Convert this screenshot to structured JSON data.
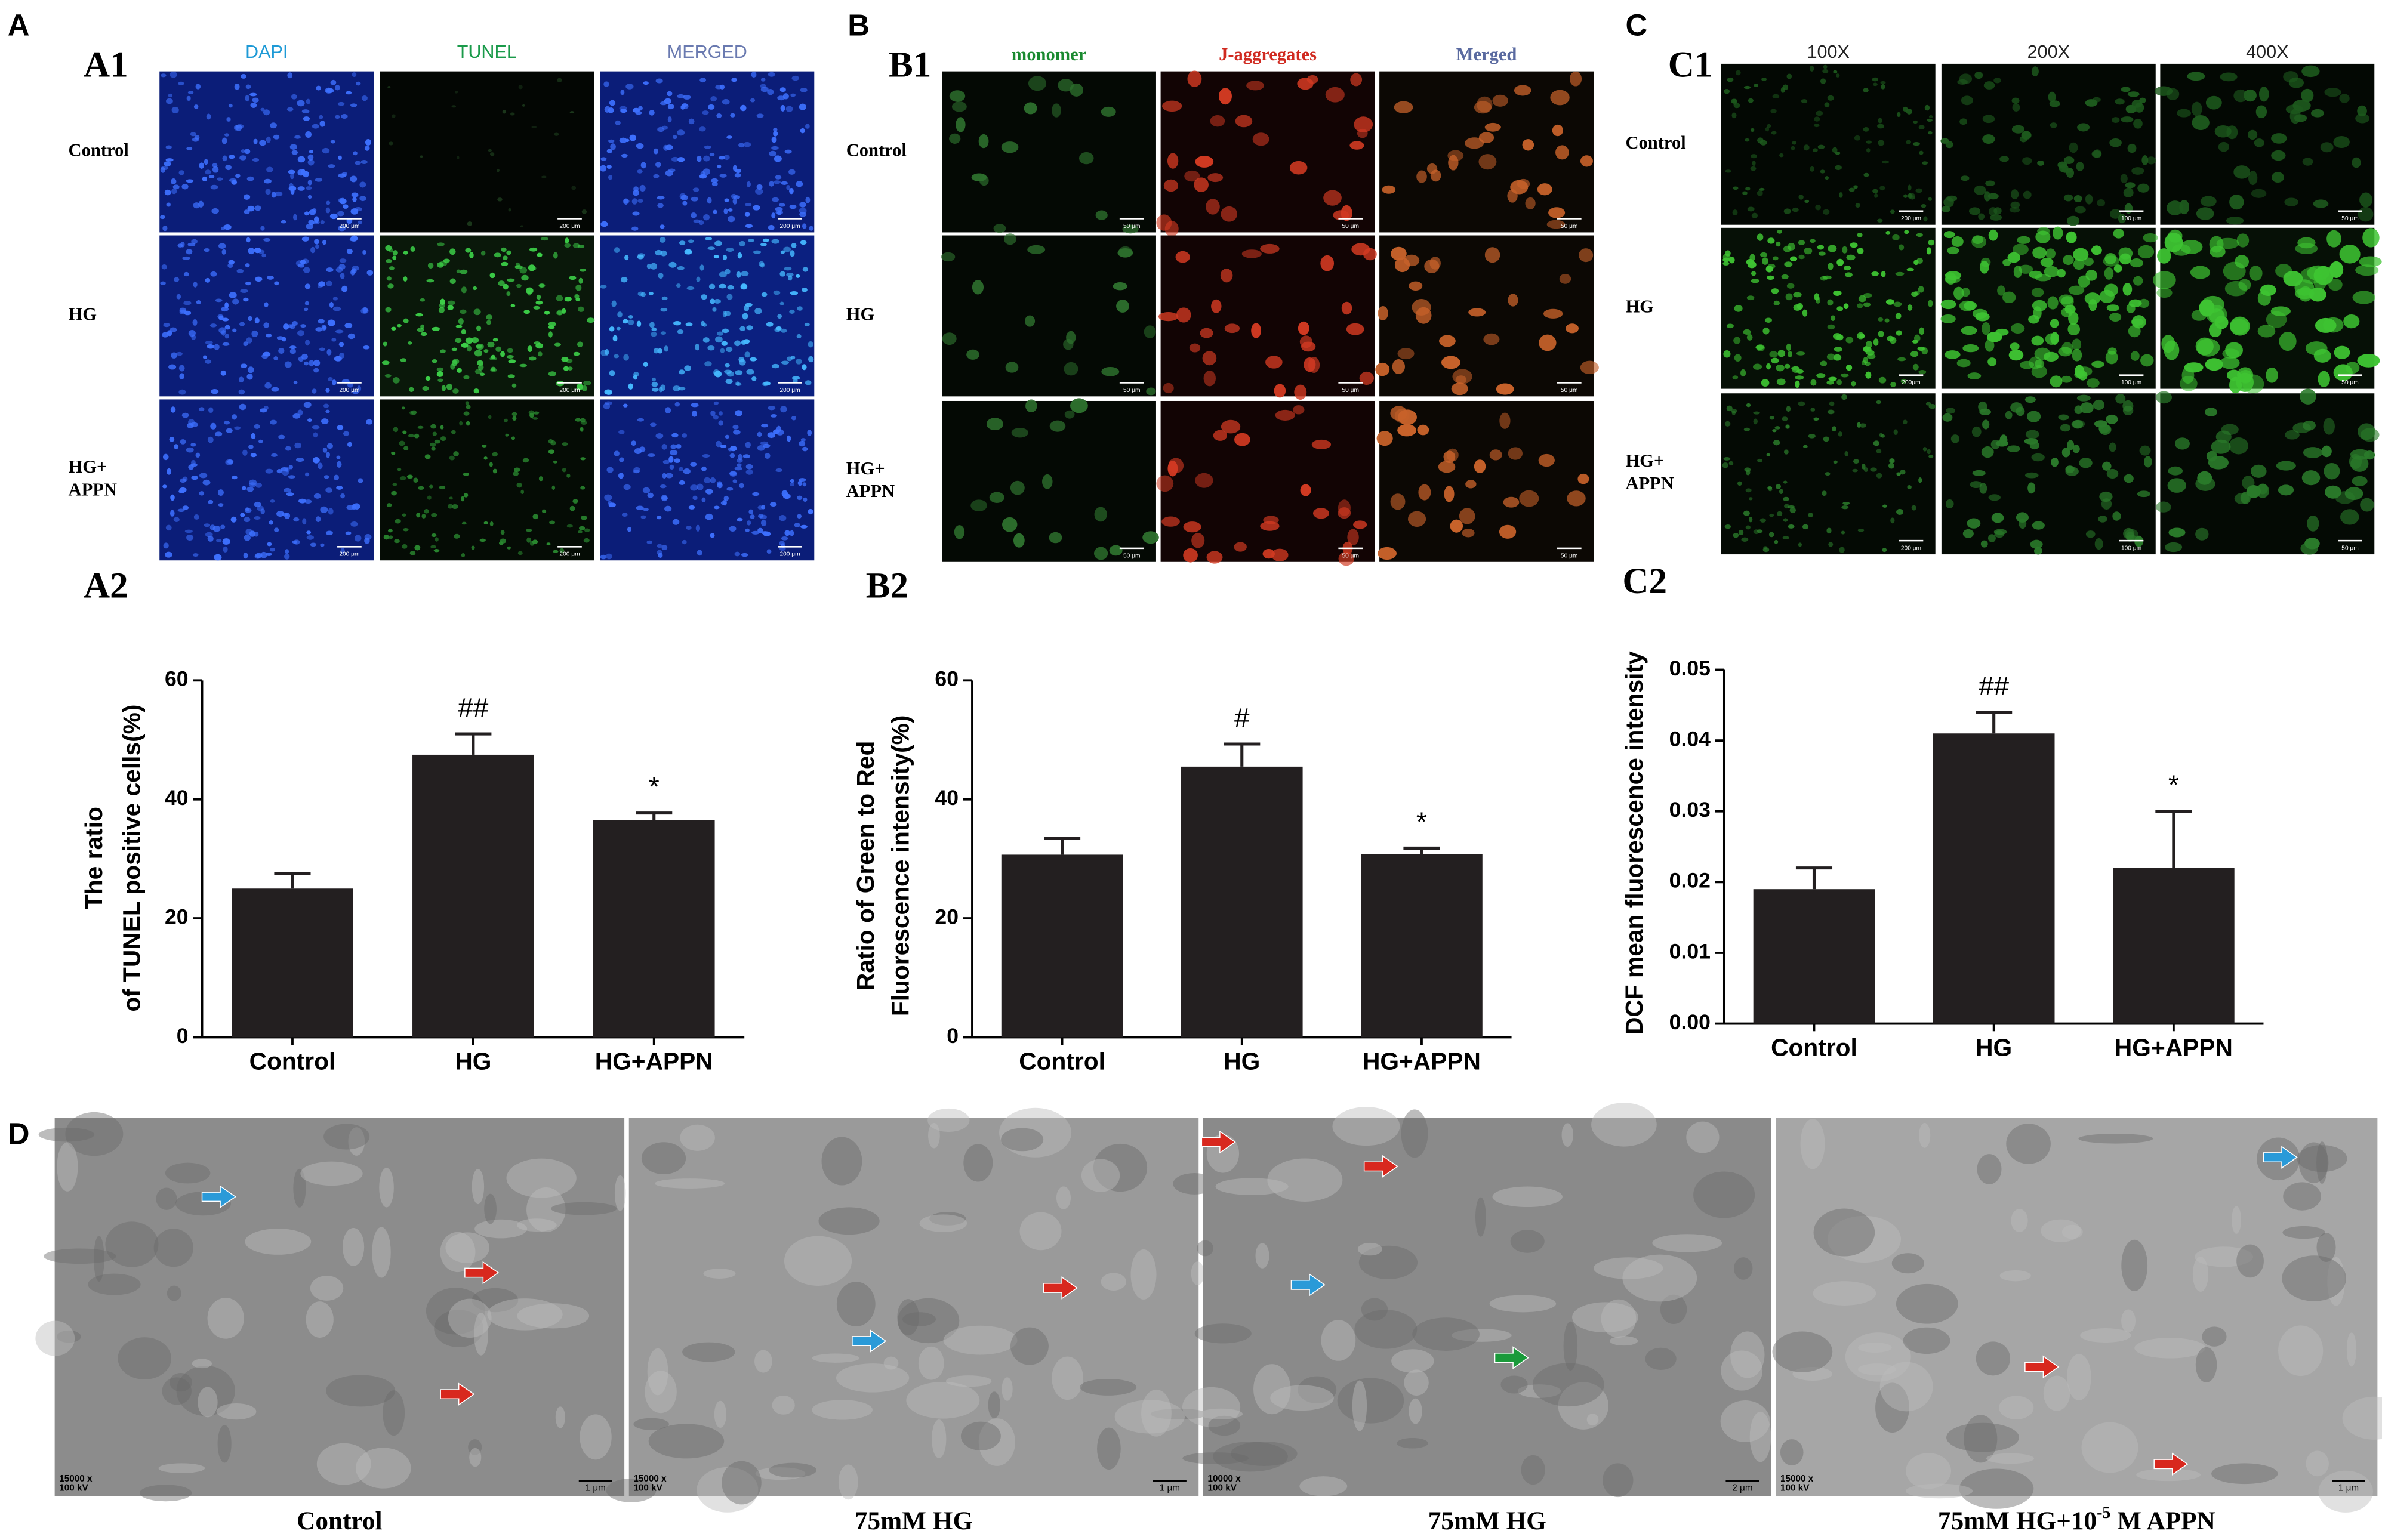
{
  "panel_labels": [
    "A",
    "B",
    "C",
    "D"
  ],
  "A1": {
    "label": "A1",
    "columns": [
      "DAPI",
      "TUNEL",
      "MERGED"
    ],
    "rows": [
      [
        "Control"
      ],
      [
        "HG"
      ],
      [
        "HG+",
        "APPN"
      ]
    ],
    "scale_bars": [
      [
        "200 μm",
        "200 μm",
        "200 μm"
      ],
      [
        "200 μm",
        "200 μm",
        "200 μm"
      ],
      [
        "200 μm",
        "200 μm",
        "200 μm"
      ]
    ]
  },
  "B1": {
    "label": "B1",
    "columns": [
      "monomer",
      "J-aggregates",
      "Merged"
    ],
    "rows": [
      [
        "Control"
      ],
      [
        "HG"
      ],
      [
        "HG+",
        "APPN"
      ]
    ],
    "scale_bars": [
      [
        "50 μm",
        "50 μm",
        "50 μm"
      ],
      [
        "50 μm",
        "50 μm",
        "50 μm"
      ],
      [
        "50 μm",
        "50 μm",
        "50 μm"
      ]
    ]
  },
  "C1": {
    "label": "C1",
    "columns": [
      "100X",
      "200X",
      "400X"
    ],
    "rows": [
      [
        "Control"
      ],
      [
        "HG"
      ],
      [
        "HG+",
        "APPN"
      ]
    ],
    "scale_bars": [
      [
        "200 μm",
        "100 μm",
        "50 μm"
      ],
      [
        "200μm",
        "100 μm",
        "50 μm"
      ],
      [
        "200 μm",
        "100 μm",
        "50 μm"
      ]
    ]
  },
  "D": {
    "images": [
      {
        "magnification": [
          "15000 x",
          "100 kV"
        ],
        "scale_bar": "1 μm",
        "caption": [
          "Control"
        ]
      },
      {
        "magnification": [
          "15000 x",
          "100 kV"
        ],
        "scale_bar": "1 μm",
        "caption": [
          "75mM HG"
        ]
      },
      {
        "magnification": [
          "10000 x",
          "100 kV"
        ],
        "scale_bar": "2 μm",
        "caption": [
          "75mM HG"
        ]
      },
      {
        "magnification": [
          "15000 x",
          "100 kV"
        ],
        "scale_bar": "1 μm",
        "caption": [
          "75mM HG+10",
          "-5",
          " M APPN"
        ]
      }
    ]
  },
  "chart_data": [
    {
      "type": "bar",
      "panel_label": "A2",
      "y_label": [
        "The ratio",
        "of TUNEL positive cells(%)"
      ],
      "categories": [
        "Control",
        "HG",
        "HG+APPN"
      ],
      "values": [
        25,
        47.5,
        36.5
      ],
      "errors": [
        2.5,
        3.5,
        1.2
      ],
      "annotations": [
        null,
        "##",
        "*"
      ],
      "color": "#231f20",
      "ylim": [
        0,
        60
      ],
      "yticks": [
        0,
        20,
        40,
        60
      ]
    },
    {
      "type": "bar",
      "panel_label": "B2",
      "y_label": [
        "Ratio of Green to Red",
        "Fluorescence intensity(%)"
      ],
      "categories": [
        "Control",
        "HG",
        "HG+APPN"
      ],
      "values": [
        30.7,
        45.5,
        30.8
      ],
      "errors": [
        2.8,
        3.8,
        1.0
      ],
      "annotations": [
        null,
        "#",
        "*"
      ],
      "color": "#231f20",
      "ylim": [
        0,
        60
      ],
      "yticks": [
        0,
        20,
        40,
        60
      ]
    },
    {
      "type": "bar",
      "panel_label": "C2",
      "y_label": [
        "DCF mean  fluorescence intensity"
      ],
      "categories": [
        "Control",
        "HG",
        "HG+APPN"
      ],
      "values": [
        0.019,
        0.041,
        0.022
      ],
      "errors": [
        0.003,
        0.003,
        0.008
      ],
      "annotations": [
        null,
        "##",
        "*"
      ],
      "color": "#231f20",
      "ylim": [
        0,
        0.05
      ],
      "yticks": [
        {
          "value": 0,
          "label": "0.00"
        },
        0.01,
        0.02,
        0.03,
        0.04,
        0.05
      ]
    }
  ]
}
